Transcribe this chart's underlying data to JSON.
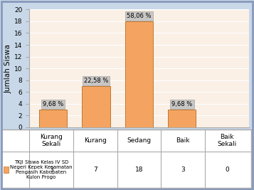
{
  "categories": [
    "Kurang\nSekali",
    "Kurang",
    "Sedang",
    "Baik",
    "Baik\nSekali"
  ],
  "categories_single": [
    "Kurang\nSekali",
    "Kurang",
    "Sedang",
    "Baik",
    "Baik\nSekali"
  ],
  "values": [
    3,
    7,
    18,
    3,
    0
  ],
  "percentages": [
    "9,68 %",
    "22,58 %",
    "58,06 %",
    "9,68 %",
    ""
  ],
  "bar_color": "#F4A460",
  "bar_edge_color": "#C07830",
  "ylabel": "Jumlah Siswa",
  "ylim": [
    0,
    20
  ],
  "yticks": [
    0,
    2,
    4,
    6,
    8,
    10,
    12,
    14,
    16,
    18,
    20
  ],
  "plot_bg": "#FAF0E6",
  "fig_bg": "#C8D8E8",
  "grid_color": "#FFFFFF",
  "legend_label": "TKJI Siswa Kelas IV SD\nNegeri Kepek Kecamatan\nPengasih Kabupaten\nKulon Progo",
  "table_values": [
    "3",
    "7",
    "18",
    "3",
    "0"
  ],
  "annotation_fontsize": 6.0,
  "ylabel_fontsize": 7.5,
  "tick_fontsize": 6.5,
  "table_fontsize": 6.5,
  "annot_bbox_color": "#C0C0C0",
  "outer_border_color": "#8899BB"
}
